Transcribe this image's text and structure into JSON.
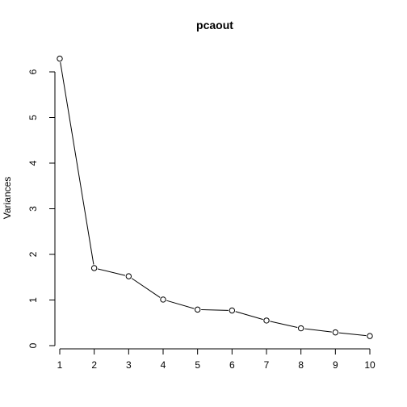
{
  "chart_data": {
    "type": "line",
    "title": "pcaout",
    "xlabel": "",
    "ylabel": "Variances",
    "x": [
      1,
      2,
      3,
      4,
      5,
      6,
      7,
      8,
      9,
      10
    ],
    "series": [
      {
        "values": [
          6.29,
          1.7,
          1.52,
          1.01,
          0.79,
          0.77,
          0.55,
          0.38,
          0.29,
          0.21
        ]
      }
    ],
    "xticks": [
      "1",
      "2",
      "3",
      "4",
      "5",
      "6",
      "7",
      "8",
      "9",
      "10"
    ],
    "yticks": [
      "0",
      "1",
      "2",
      "3",
      "4",
      "5",
      "6"
    ],
    "xlim": [
      1,
      10
    ],
    "ylim": [
      0,
      6
    ],
    "grid": false,
    "markers": "open-circle"
  }
}
